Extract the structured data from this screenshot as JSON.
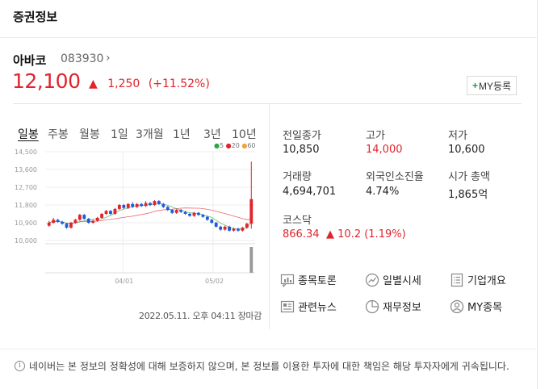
{
  "section_title": "증권정보",
  "stock": {
    "name": "아바코",
    "code": "083930",
    "code_arrow": "›",
    "price": "12,100",
    "change_arrow": "▲",
    "change_amount": "1,250",
    "change_percent": "(+11.52%)",
    "my_button": {
      "plus": "+",
      "label": "MY등록"
    }
  },
  "chart_tabs": [
    "일봉",
    "주봉",
    "월봉",
    "1일",
    "3개월",
    "1년",
    "3년",
    "10년"
  ],
  "active_tab": "일봉",
  "legend": [
    "5",
    "20",
    "60"
  ],
  "chart_data": {
    "type": "candlestick",
    "title": "",
    "y_ticks": [
      "14,500",
      "13,600",
      "12,700",
      "11,800",
      "10,900",
      "10,000"
    ],
    "ylim": [
      10000,
      14500
    ],
    "x_ticks": [
      "04/01",
      "05/02"
    ],
    "grid": true,
    "candles": [
      {
        "o": 10750,
        "c": 10900,
        "h": 11000,
        "l": 10700
      },
      {
        "o": 10900,
        "c": 11050,
        "h": 11150,
        "l": 10850
      },
      {
        "o": 11050,
        "c": 10950,
        "h": 11100,
        "l": 10900
      },
      {
        "o": 10950,
        "c": 10850,
        "h": 11000,
        "l": 10800
      },
      {
        "o": 10850,
        "c": 10650,
        "h": 10900,
        "l": 10600
      },
      {
        "o": 10650,
        "c": 10900,
        "h": 10950,
        "l": 10600
      },
      {
        "o": 10900,
        "c": 11050,
        "h": 11100,
        "l": 10850
      },
      {
        "o": 11050,
        "c": 11300,
        "h": 11350,
        "l": 11000
      },
      {
        "o": 11300,
        "c": 11100,
        "h": 11350,
        "l": 11050
      },
      {
        "o": 11100,
        "c": 10900,
        "h": 11150,
        "l": 10850
      },
      {
        "o": 10900,
        "c": 11000,
        "h": 11050,
        "l": 10850
      },
      {
        "o": 11000,
        "c": 11150,
        "h": 11200,
        "l": 10950
      },
      {
        "o": 11150,
        "c": 11350,
        "h": 11400,
        "l": 11100
      },
      {
        "o": 11350,
        "c": 11500,
        "h": 11550,
        "l": 11300
      },
      {
        "o": 11500,
        "c": 11350,
        "h": 11550,
        "l": 11300
      },
      {
        "o": 11350,
        "c": 11600,
        "h": 11650,
        "l": 11300
      },
      {
        "o": 11600,
        "c": 11800,
        "h": 11850,
        "l": 11550
      },
      {
        "o": 11800,
        "c": 11650,
        "h": 11850,
        "l": 11600
      },
      {
        "o": 11650,
        "c": 11850,
        "h": 11900,
        "l": 11600
      },
      {
        "o": 11850,
        "c": 11700,
        "h": 11950,
        "l": 11650
      },
      {
        "o": 11700,
        "c": 11850,
        "h": 11900,
        "l": 11650
      },
      {
        "o": 11850,
        "c": 11750,
        "h": 11900,
        "l": 11700
      },
      {
        "o": 11750,
        "c": 11900,
        "h": 12000,
        "l": 11700
      },
      {
        "o": 11900,
        "c": 11800,
        "h": 11950,
        "l": 11750
      },
      {
        "o": 11800,
        "c": 12000,
        "h": 12050,
        "l": 11750
      },
      {
        "o": 12000,
        "c": 11850,
        "h": 12050,
        "l": 11800
      },
      {
        "o": 11850,
        "c": 11700,
        "h": 11900,
        "l": 11650
      },
      {
        "o": 11700,
        "c": 11550,
        "h": 11750,
        "l": 11500
      },
      {
        "o": 11550,
        "c": 11400,
        "h": 11600,
        "l": 11350
      },
      {
        "o": 11400,
        "c": 11550,
        "h": 11600,
        "l": 11350
      },
      {
        "o": 11550,
        "c": 11450,
        "h": 11600,
        "l": 11400
      },
      {
        "o": 11450,
        "c": 11350,
        "h": 11500,
        "l": 11300
      },
      {
        "o": 11350,
        "c": 11250,
        "h": 11400,
        "l": 11200
      },
      {
        "o": 11250,
        "c": 11400,
        "h": 11450,
        "l": 11200
      },
      {
        "o": 11400,
        "c": 11300,
        "h": 11450,
        "l": 11250
      },
      {
        "o": 11300,
        "c": 11200,
        "h": 11350,
        "l": 11150
      },
      {
        "o": 11200,
        "c": 11050,
        "h": 11250,
        "l": 11000
      },
      {
        "o": 11050,
        "c": 10900,
        "h": 11100,
        "l": 10850
      },
      {
        "o": 10900,
        "c": 10700,
        "h": 10950,
        "l": 10650
      },
      {
        "o": 10700,
        "c": 10550,
        "h": 10750,
        "l": 10500
      },
      {
        "o": 10550,
        "c": 10700,
        "h": 10750,
        "l": 10500
      },
      {
        "o": 10700,
        "c": 10500,
        "h": 10750,
        "l": 10450
      },
      {
        "o": 10500,
        "c": 10600,
        "h": 10650,
        "l": 10450
      },
      {
        "o": 10600,
        "c": 10500,
        "h": 10650,
        "l": 10450
      },
      {
        "o": 10500,
        "c": 10650,
        "h": 10700,
        "l": 10450
      },
      {
        "o": 10650,
        "c": 10850,
        "h": 10900,
        "l": 10600
      },
      {
        "o": 10850,
        "c": 12100,
        "h": 14000,
        "l": 10600
      }
    ],
    "volume_spike_last": true
  },
  "timestamp": "2022.05.11. 오후 04:11 장마감",
  "stats": [
    {
      "label": "전일종가",
      "value": "10,850",
      "color": "normal"
    },
    {
      "label": "고가",
      "value": "14,000",
      "color": "red"
    },
    {
      "label": "저가",
      "value": "10,600",
      "color": "normal"
    },
    {
      "label": "거래량",
      "value": "4,694,701",
      "color": "normal"
    },
    {
      "label": "외국인소진율",
      "value": "4.74%",
      "color": "normal"
    },
    {
      "label": "시가 총액",
      "value": "1,865억",
      "color": "normal"
    },
    {
      "label": "코스닥",
      "value": "866.34",
      "color": "red"
    }
  ],
  "kosdaq_change_arrow": "▲",
  "kosdaq_change": "10.2 (1.19%)",
  "links": [
    {
      "label": "종목토론",
      "icon": "chat-chart-icon"
    },
    {
      "label": "일별시세",
      "icon": "trend-line-icon"
    },
    {
      "label": "기업개요",
      "icon": "document-list-icon"
    },
    {
      "label": "관련뉴스",
      "icon": "newspaper-icon"
    },
    {
      "label": "재무정보",
      "icon": "pie-chart-icon"
    },
    {
      "label": "MY종목",
      "icon": "user-icon"
    }
  ],
  "notice": {
    "icon": "i",
    "text": "네이버는 본 정보의 정확성에 대해 보증하지 않으며, 본 정보를 이용한 투자에 대한 책임은 해당 투자자에게 귀속됩니다."
  },
  "colors": {
    "up": "#e0242c",
    "down": "#1f5bd8",
    "ma5": "#27a745",
    "ma20": "#e0242c",
    "ma60": "#f2a23a"
  }
}
